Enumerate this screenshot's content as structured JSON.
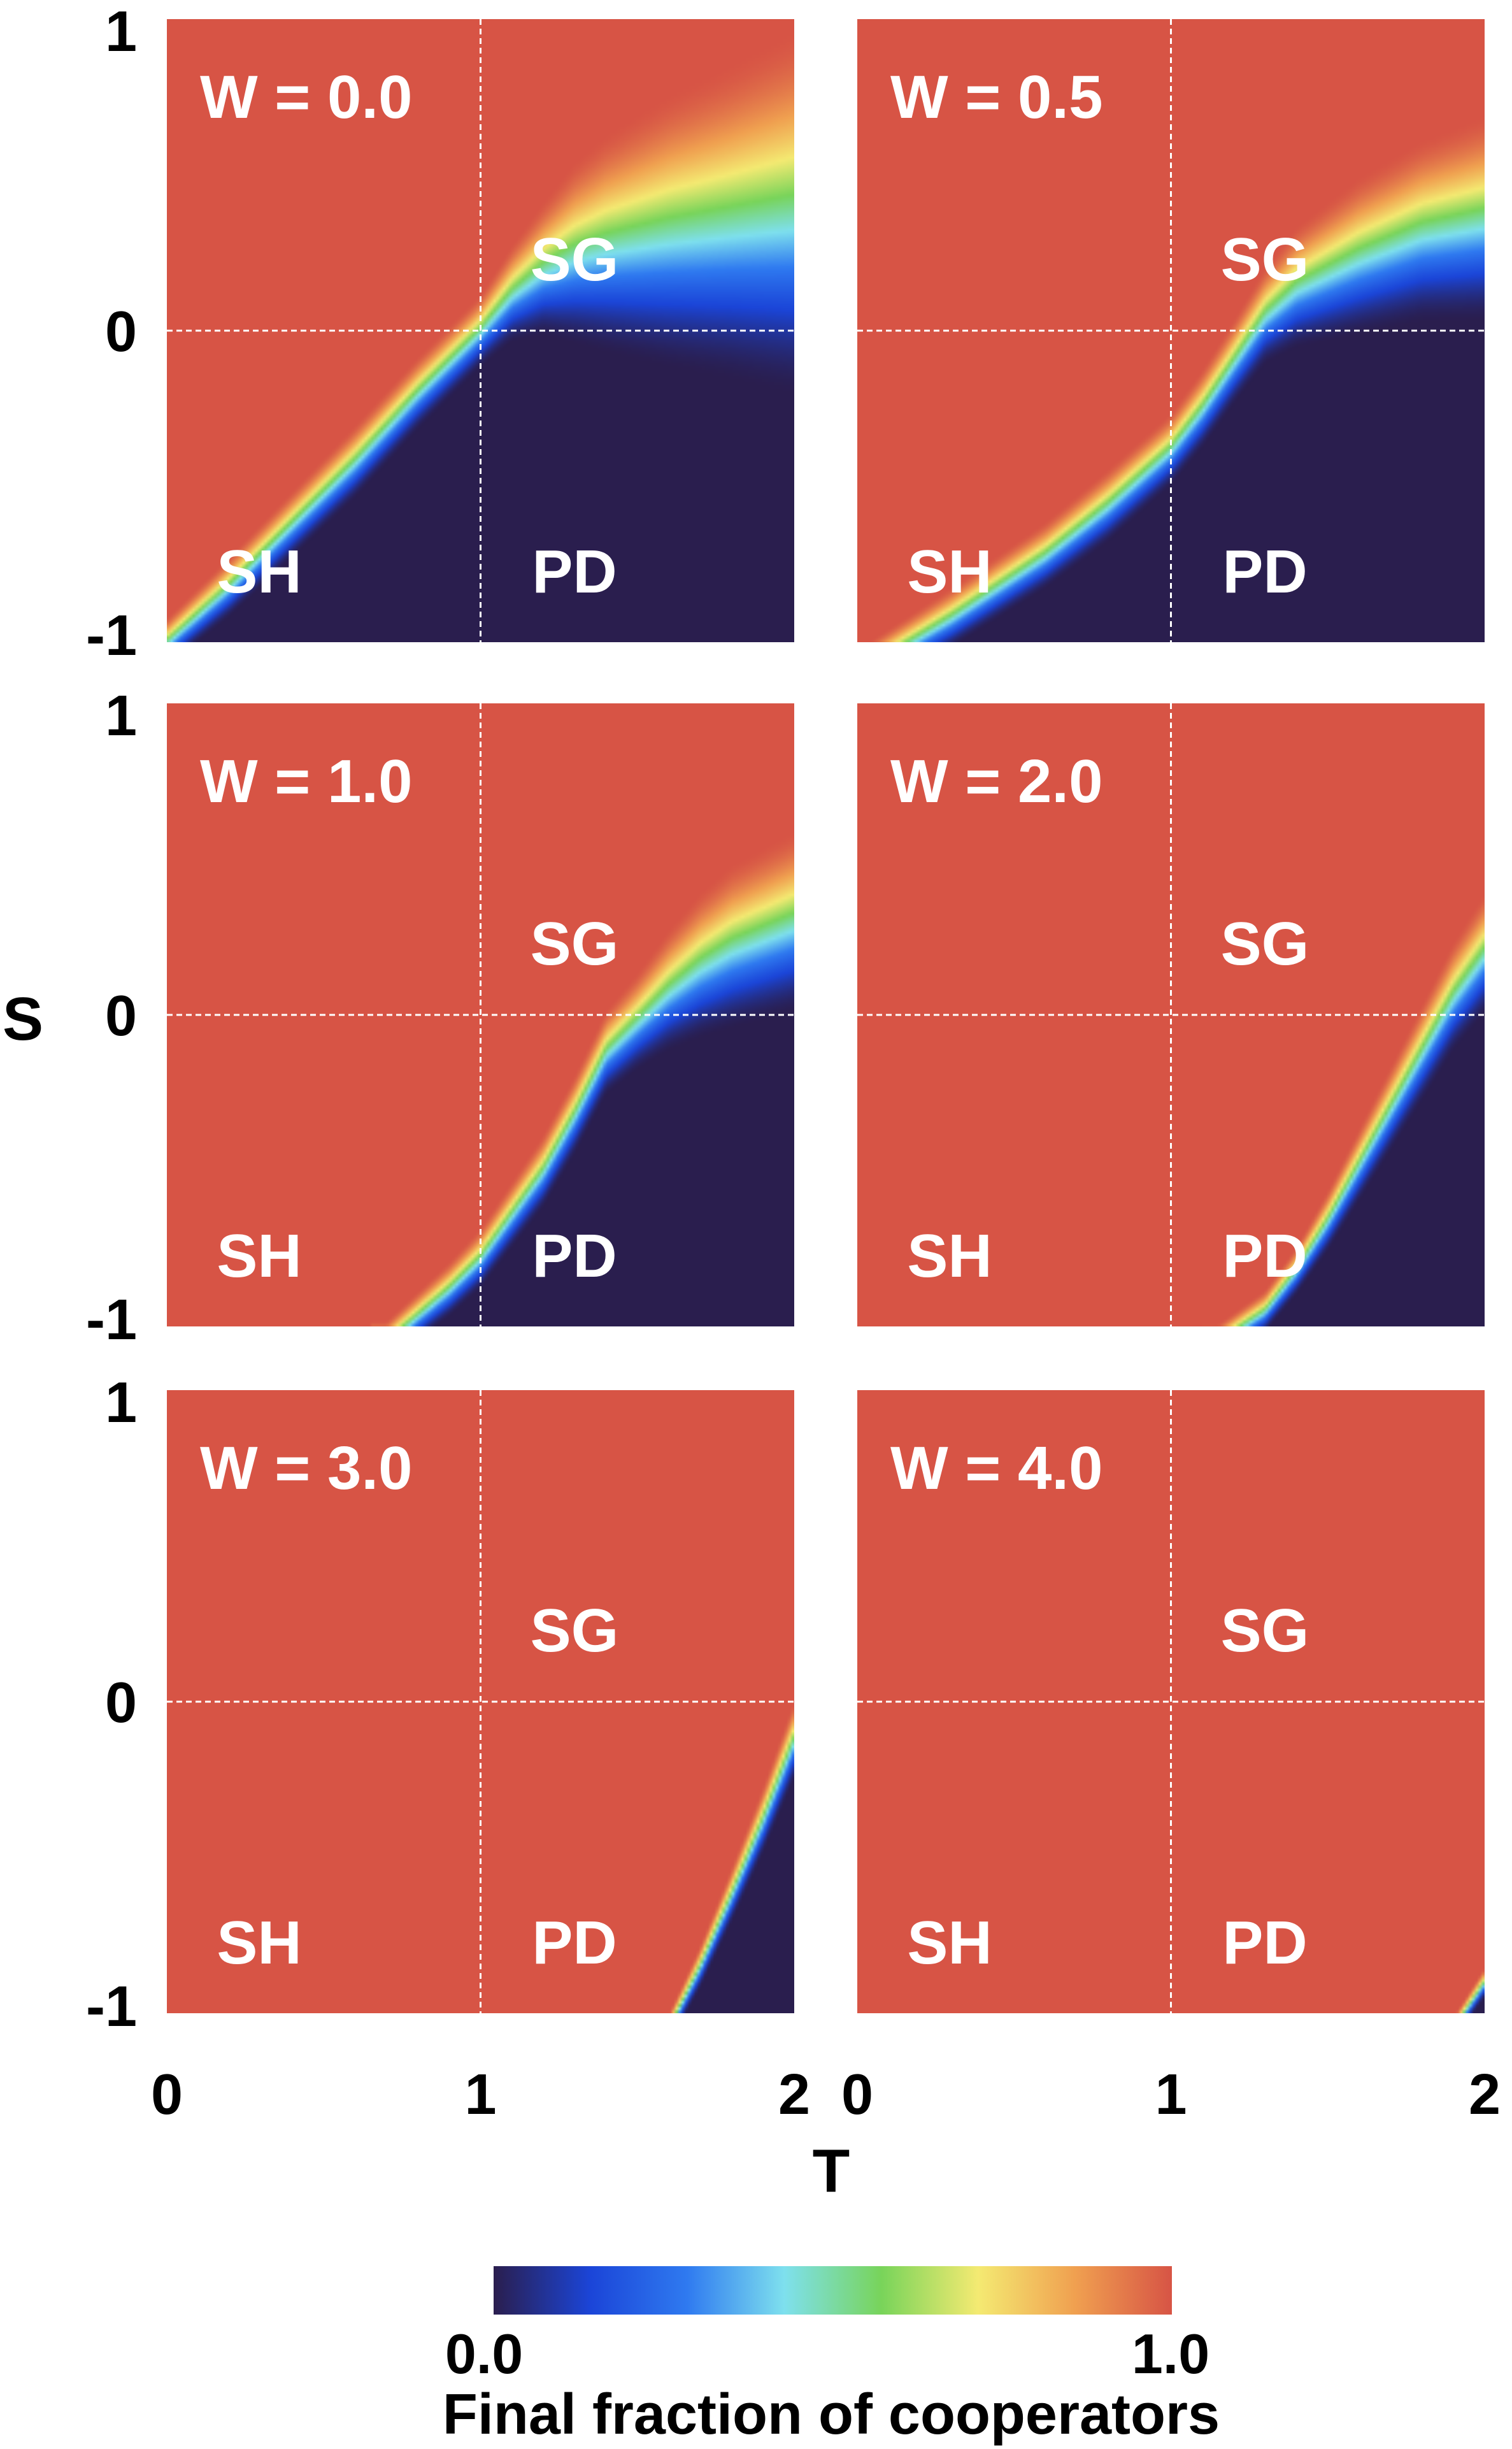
{
  "chart_data": {
    "type": "heatmap",
    "layout": "3x2 small multiples",
    "xlabel": "T",
    "ylabel": "S",
    "xlim": [
      0,
      2
    ],
    "ylim": [
      -1,
      1
    ],
    "x_ticks": [
      "0",
      "1",
      "2"
    ],
    "y_ticks": [
      "-1",
      "0",
      "1"
    ],
    "grid_lines": {
      "x": 1,
      "y": 0,
      "style": "dashed"
    },
    "region_labels": [
      {
        "text": "SG",
        "quadrant": "upper-right"
      },
      {
        "text": "SH",
        "quadrant": "lower-left"
      },
      {
        "text": "PD",
        "quadrant": "lower-right"
      }
    ],
    "colorbar": {
      "label": "Final fraction of cooperators",
      "min_label": "0.0",
      "max_label": "1.0",
      "min": 0.0,
      "max": 1.0,
      "colormap": [
        "#2a1e4e",
        "#1b45d8",
        "#2f7af0",
        "#7ee0ee",
        "#78d45a",
        "#f4ea72",
        "#f0a050",
        "#d75445"
      ]
    },
    "panels": [
      {
        "title": "W = 0.0",
        "boundary_comment": "S value at which cooperation drops from 1 (above) to 0 (below), sampled at the T values in boundary_T",
        "boundary_T": [
          0,
          0.2,
          0.4,
          0.6,
          0.8,
          1.0,
          1.1,
          1.2,
          1.3,
          1.4,
          1.6,
          1.8,
          2.0
        ],
        "boundary_S": [
          -1.0,
          -0.82,
          -0.62,
          -0.42,
          -0.2,
          0.0,
          0.12,
          0.2,
          0.25,
          0.28,
          0.32,
          0.35,
          0.38
        ],
        "boundary_width": [
          0.08,
          0.1,
          0.11,
          0.12,
          0.12,
          0.12,
          0.16,
          0.22,
          0.3,
          0.36,
          0.45,
          0.52,
          0.6
        ]
      },
      {
        "title": "W = 0.5",
        "boundary_T": [
          0.0,
          0.3,
          0.6,
          0.8,
          1.0,
          1.1,
          1.2,
          1.3,
          1.4,
          1.6,
          1.8,
          2.0
        ],
        "boundary_S": [
          -1.1,
          -0.92,
          -0.72,
          -0.56,
          -0.38,
          -0.25,
          -0.1,
          0.05,
          0.14,
          0.24,
          0.32,
          0.36
        ],
        "boundary_width": [
          0.08,
          0.1,
          0.11,
          0.12,
          0.12,
          0.13,
          0.14,
          0.16,
          0.2,
          0.26,
          0.3,
          0.34
        ]
      },
      {
        "title": "W = 1.0",
        "boundary_T": [
          0.7,
          0.9,
          1.0,
          1.1,
          1.2,
          1.3,
          1.4,
          1.5,
          1.6,
          1.7,
          1.8,
          2.0
        ],
        "boundary_S": [
          -1.05,
          -0.88,
          -0.78,
          -0.64,
          -0.5,
          -0.32,
          -0.12,
          -0.02,
          0.08,
          0.16,
          0.22,
          0.3
        ],
        "boundary_width": [
          0.07,
          0.09,
          0.1,
          0.11,
          0.12,
          0.13,
          0.14,
          0.16,
          0.2,
          0.24,
          0.27,
          0.3
        ]
      },
      {
        "title": "W = 2.0",
        "boundary_T": [
          1.15,
          1.3,
          1.4,
          1.5,
          1.6,
          1.7,
          1.8,
          1.9,
          2.0
        ],
        "boundary_S": [
          -1.05,
          -0.95,
          -0.82,
          -0.66,
          -0.48,
          -0.3,
          -0.12,
          0.06,
          0.2
        ],
        "boundary_width": [
          0.06,
          0.07,
          0.08,
          0.1,
          0.12,
          0.14,
          0.16,
          0.18,
          0.2
        ]
      },
      {
        "title": "W = 3.0",
        "boundary_T": [
          1.6,
          1.7,
          1.8,
          1.9,
          2.0
        ],
        "boundary_S": [
          -1.05,
          -0.85,
          -0.62,
          -0.38,
          -0.12
        ],
        "boundary_width": [
          0.05,
          0.07,
          0.09,
          0.11,
          0.13
        ]
      },
      {
        "title": "W = 4.0",
        "boundary_T": [
          1.9,
          2.0
        ],
        "boundary_S": [
          -1.05,
          -0.9
        ],
        "boundary_width": [
          0.04,
          0.05
        ]
      }
    ]
  }
}
